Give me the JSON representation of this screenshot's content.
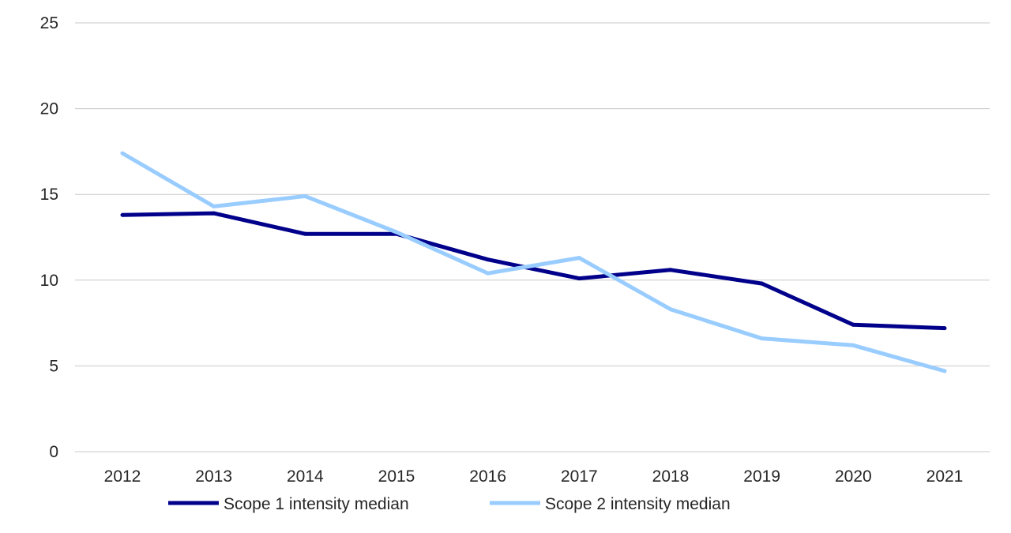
{
  "chart_data": {
    "type": "line",
    "title": "",
    "xlabel": "",
    "ylabel": "",
    "categories": [
      "2012",
      "2013",
      "2014",
      "2015",
      "2016",
      "2017",
      "2018",
      "2019",
      "2020",
      "2021"
    ],
    "ylim": [
      0,
      25
    ],
    "yticks": [
      0,
      5,
      10,
      15,
      20,
      25
    ],
    "grid": true,
    "legend_position": "bottom",
    "series": [
      {
        "name": "Scope 1 intensity median",
        "color": "#00008b",
        "values": [
          13.8,
          13.9,
          12.7,
          12.7,
          11.2,
          10.1,
          10.6,
          9.8,
          7.4,
          7.2
        ]
      },
      {
        "name": "Scope 2 intensity median",
        "color": "#99ccff",
        "values": [
          17.4,
          14.3,
          14.9,
          12.8,
          10.4,
          11.3,
          8.3,
          6.6,
          6.2,
          4.7
        ]
      }
    ]
  }
}
